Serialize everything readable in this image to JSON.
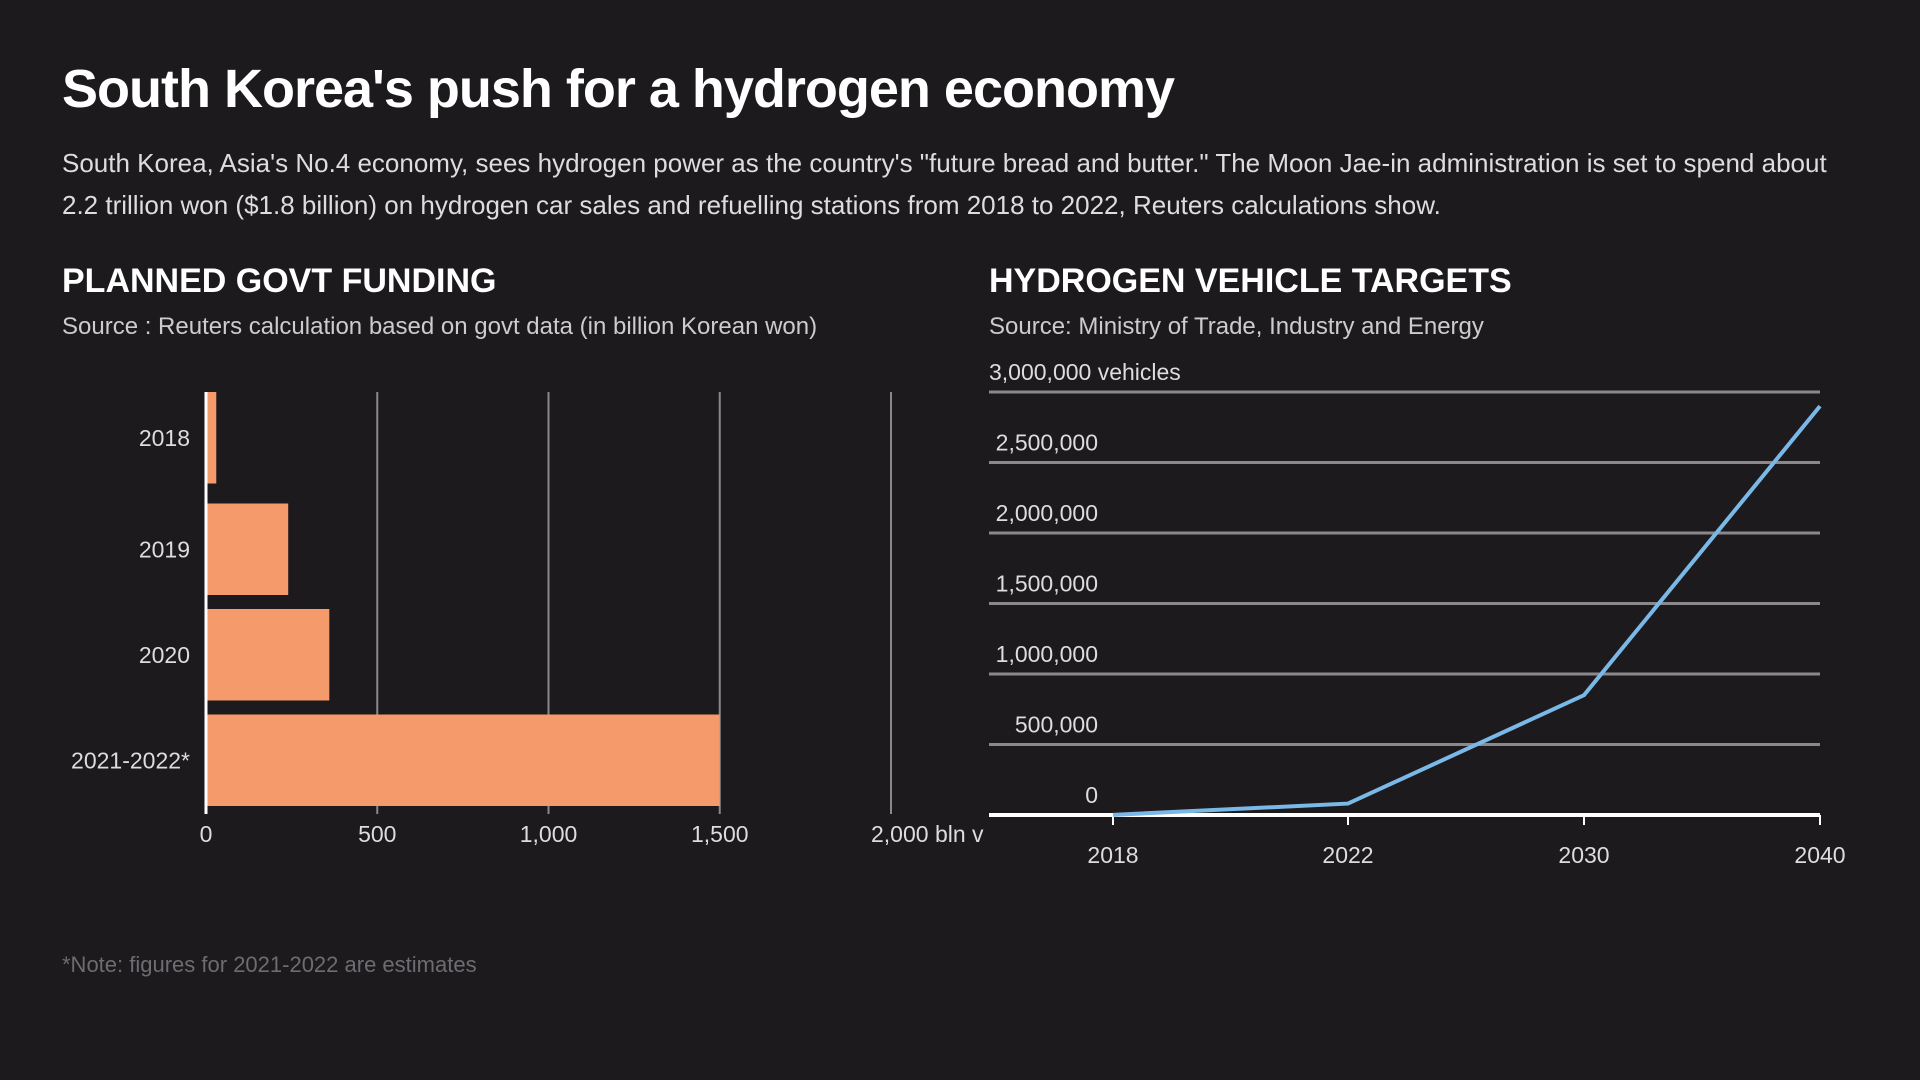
{
  "title": "South Korea's push for a hydrogen economy",
  "description": "South Korea, Asia's No.4 economy, sees hydrogen power as the country's \"future bread and butter.\" The Moon Jae-in administration is set to spend about 2.2 trillion won ($1.8 billion) on hydrogen car sales and refuelling stations from 2018 to 2022, Reuters calculations show.",
  "note": "*Note: figures for 2021-2022 are estimates",
  "colors": {
    "background": "#1c1a1d",
    "bar": "#f59a6a",
    "line": "#7ab8e8",
    "grid": "#8a888c"
  },
  "chart_data": [
    {
      "type": "bar",
      "orientation": "horizontal",
      "title": "PLANNED GOVT FUNDING",
      "subtitle": "Source : Reuters calculation based on govt data (in billion Korean won)",
      "categories": [
        "2018",
        "2019",
        "2020",
        "2021-2022*"
      ],
      "values": [
        30,
        240,
        360,
        1500
      ],
      "xlim": [
        0,
        2000
      ],
      "xticks": [
        0,
        500,
        1000,
        1500,
        2000
      ],
      "xtick_labels": [
        "0",
        "500",
        "1,000",
        "1,500",
        "2,000 bln v"
      ],
      "grid": "vertical"
    },
    {
      "type": "line",
      "title": "HYDROGEN VEHICLE TARGETS",
      "subtitle": "Source: Ministry of Trade, Industry and Energy",
      "categories": [
        "2018",
        "2022",
        "2030",
        "2040"
      ],
      "values": [
        1000,
        81000,
        850000,
        2900000
      ],
      "ylim": [
        0,
        3000000
      ],
      "yticks": [
        0,
        500000,
        1000000,
        1500000,
        2000000,
        2500000,
        3000000
      ],
      "ytick_labels": [
        "0",
        "500,000",
        "1,000,000",
        "1,500,000",
        "2,000,000",
        "2,500,000",
        "3,000,000 vehicles"
      ],
      "grid": "horizontal"
    }
  ]
}
